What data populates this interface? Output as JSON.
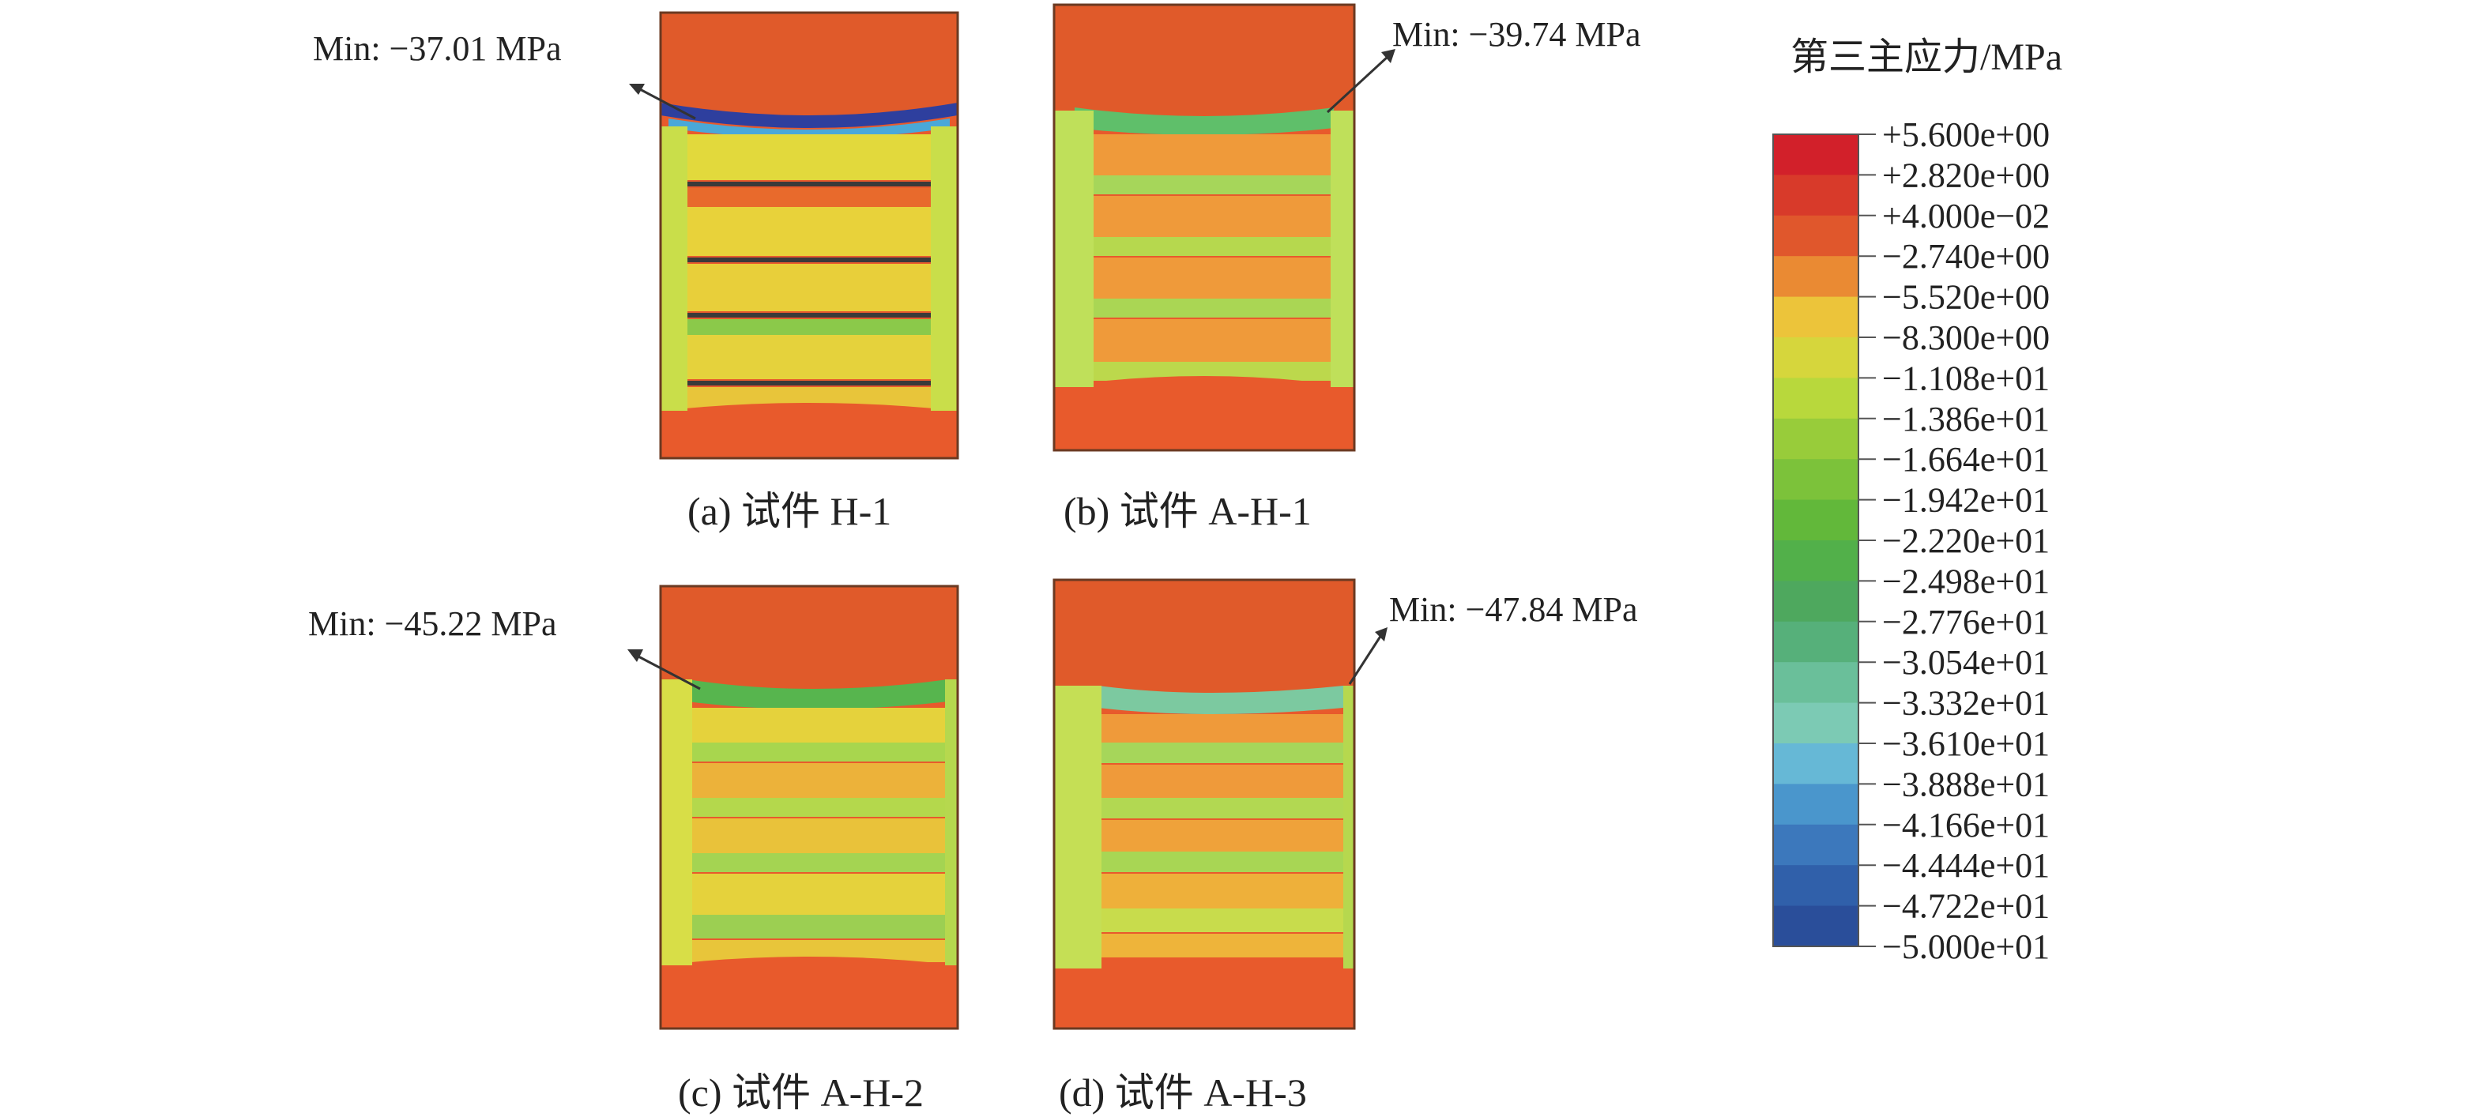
{
  "panels": [
    {
      "id": "a",
      "caption": "(a) 试件 H-1",
      "min_label": "Min: −37.01 MPa",
      "top_band_color": "#2e3f9e",
      "side_color": "#c9de4a",
      "band_stripe": "#e2d93c"
    },
    {
      "id": "b",
      "caption": "(b) 试件 A-H-1",
      "min_label": "Min: −39.74 MPa",
      "top_band_color": "#5fbf6a",
      "side_color": "#bfe05a",
      "band_stripe": "#ef9a3a"
    },
    {
      "id": "c",
      "caption": "(c) 试件 A-H-2",
      "min_label": "Min: −45.22 MPa",
      "top_band_color": "#57b54e",
      "side_color": "#d8de47",
      "band_stripe": "#e5d23c"
    },
    {
      "id": "d",
      "caption": "(d) 试件 A-H-3",
      "min_label": "Min: −47.84 MPa",
      "top_band_color": "#7cc9a0",
      "side_color": "#c5df55",
      "band_stripe": "#ef9a3a"
    }
  ],
  "legend": {
    "title": "第三主应力/MPa",
    "ticks": [
      "+5.600e+00",
      "+2.820e+00",
      "+4.000e−02",
      "−2.740e+00",
      "−5.520e+00",
      "−8.300e+00",
      "−1.108e+01",
      "−1.386e+01",
      "−1.664e+01",
      "−1.942e+01",
      "−2.220e+01",
      "−2.498e+01",
      "−2.776e+01",
      "−3.054e+01",
      "−3.332e+01",
      "−3.610e+01",
      "−3.888e+01",
      "−4.166e+01",
      "−4.444e+01",
      "−4.722e+01",
      "−5.000e+01"
    ],
    "colors": [
      "#d2202a",
      "#d83a2a",
      "#e0572c",
      "#ea8a33",
      "#ecc43a",
      "#d6d63c",
      "#b8d83c",
      "#98cc3a",
      "#7cc23a",
      "#62b83a",
      "#52b04a",
      "#4ea85e",
      "#56b07a",
      "#6abf9a",
      "#7ccab4",
      "#66b8d6",
      "#4a96cc",
      "#3c78bc",
      "#3060aa",
      "#2a4e9a"
    ]
  }
}
